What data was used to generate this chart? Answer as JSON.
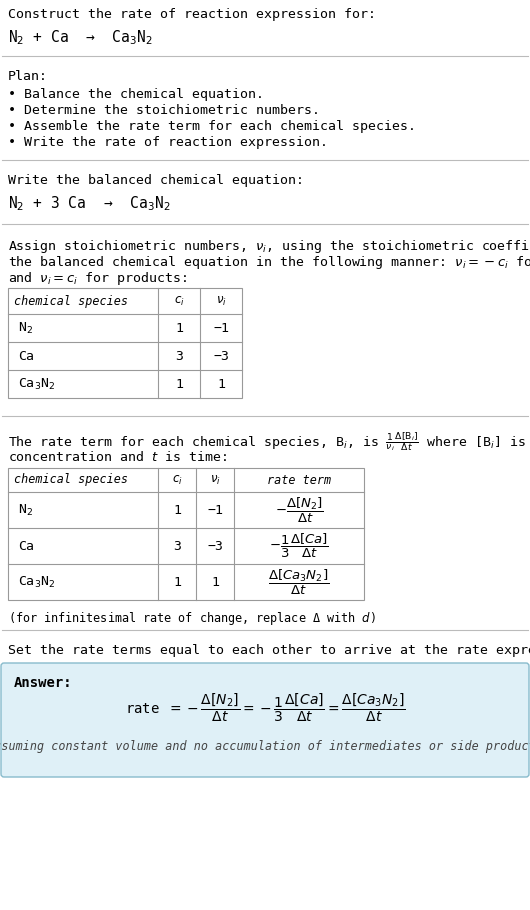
{
  "title_line1": "Construct the rate of reaction expression for:",
  "title_eq": "N$_2$ + Ca  →  Ca$_3$N$_2$",
  "plan_header": "Plan:",
  "plan_items": [
    "• Balance the chemical equation.",
    "• Determine the stoichiometric numbers.",
    "• Assemble the rate term for each chemical species.",
    "• Write the rate of reaction expression."
  ],
  "balanced_header": "Write the balanced chemical equation:",
  "balanced_eq": "N$_2$ + 3 Ca  →  Ca$_3$N$_2$",
  "stoich_text1": "Assign stoichiometric numbers, $\\nu_i$, using the stoichiometric coefficients, $c_i$, from",
  "stoich_text2": "the balanced chemical equation in the following manner: $\\nu_i = -c_i$ for reactants",
  "stoich_text3": "and $\\nu_i = c_i$ for products:",
  "table1_headers": [
    "chemical species",
    "$c_i$",
    "$\\nu_i$"
  ],
  "table1_rows": [
    [
      "N$_2$",
      "1",
      "−1"
    ],
    [
      "Ca",
      "3",
      "−3"
    ],
    [
      "Ca$_3$N$_2$",
      "1",
      "1"
    ]
  ],
  "rate_text1": "The rate term for each chemical species, B$_i$, is $\\frac{1}{\\nu_i}\\frac{\\Delta[\\mathrm{B}_i]}{\\Delta t}$ where [B$_i$] is the amount",
  "rate_text2": "concentration and $t$ is time:",
  "table2_headers": [
    "chemical species",
    "$c_i$",
    "$\\nu_i$",
    "rate term"
  ],
  "table2_rows": [
    [
      "N$_2$",
      "1",
      "−1",
      "$-\\dfrac{\\Delta[N_2]}{\\Delta t}$"
    ],
    [
      "Ca",
      "3",
      "−3",
      "$-\\dfrac{1}{3}\\dfrac{\\Delta[Ca]}{\\Delta t}$"
    ],
    [
      "Ca$_3$N$_2$",
      "1",
      "1",
      "$\\dfrac{\\Delta[Ca_3N_2]}{\\Delta t}$"
    ]
  ],
  "infinitesimal_note": "(for infinitesimal rate of change, replace Δ with $d$)",
  "set_equal_text": "Set the rate terms equal to each other to arrive at the rate expression:",
  "answer_label": "Answer:",
  "answer_eq": "rate $= -\\dfrac{\\Delta[N_2]}{\\Delta t} = -\\dfrac{1}{3}\\dfrac{\\Delta[Ca]}{\\Delta t} = \\dfrac{\\Delta[Ca_3N_2]}{\\Delta t}$",
  "answer_note": "(assuming constant volume and no accumulation of intermediates or side products)",
  "bg_color": "#ffffff",
  "answer_bg_color": "#dff0f7",
  "table_border_color": "#999999",
  "text_color": "#000000",
  "font_size": 9.5,
  "small_font_size": 8.5,
  "mono_font": "DejaVu Sans Mono"
}
